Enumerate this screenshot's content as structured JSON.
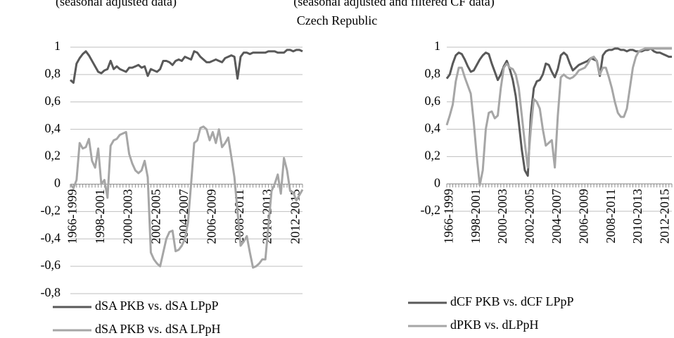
{
  "title": "Czech Republic",
  "chart_data": [
    {
      "type": "line",
      "subtitle": "(seasonal adjusted data)",
      "categories": [
        null,
        "1966-1999",
        null,
        null,
        null,
        null,
        null,
        null,
        null,
        null,
        "1998-2001",
        null,
        null,
        null,
        null,
        null,
        null,
        null,
        null,
        "2000-2003",
        null,
        null,
        null,
        null,
        null,
        null,
        null,
        null,
        "2002-2005",
        null,
        null,
        null,
        null,
        null,
        null,
        null,
        null,
        "2004-2007",
        null,
        null,
        null,
        null,
        null,
        null,
        null,
        null,
        "2006-2009",
        null,
        null,
        null,
        null,
        null,
        null,
        null,
        null,
        "2008-2011",
        null,
        null,
        null,
        null,
        null,
        null,
        null,
        null,
        "2010-2013",
        null,
        null,
        null,
        null,
        null,
        null,
        null,
        null,
        "2012-2015",
        null,
        null
      ],
      "ylim": [
        -0.8,
        1
      ],
      "yticks": [
        {
          "value": -0.8,
          "label": "-0,8"
        },
        {
          "value": -0.6,
          "label": "-0,6"
        },
        {
          "value": -0.4,
          "label": "-0,4"
        },
        {
          "value": -0.2,
          "label": "-0,2"
        },
        0,
        {
          "value": 0.2,
          "label": "0,2"
        },
        {
          "value": 0.4,
          "label": "0,4"
        },
        {
          "value": 0.6,
          "label": "0,6"
        },
        {
          "value": 0.8,
          "label": "0,8"
        },
        1
      ],
      "grid": true,
      "series": [
        {
          "name": "dSA PKB vs. dSA LPpP",
          "color": "#595959",
          "values": [
            0.76,
            0.74,
            0.88,
            0.92,
            0.95,
            0.97,
            0.94,
            0.9,
            0.86,
            0.82,
            0.81,
            0.83,
            0.84,
            0.9,
            0.84,
            0.86,
            0.84,
            0.83,
            0.82,
            0.85,
            0.85,
            0.86,
            0.87,
            0.85,
            0.86,
            0.79,
            0.84,
            0.83,
            0.82,
            0.84,
            0.9,
            0.9,
            0.89,
            0.87,
            0.9,
            0.91,
            0.9,
            0.93,
            0.92,
            0.91,
            0.97,
            0.96,
            0.93,
            0.91,
            0.89,
            0.89,
            0.9,
            0.91,
            0.9,
            0.89,
            0.92,
            0.93,
            0.94,
            0.93,
            0.77,
            0.93,
            0.96,
            0.96,
            0.95,
            0.96,
            0.96,
            0.96,
            0.96,
            0.96,
            0.97,
            0.97,
            0.97,
            0.96,
            0.96,
            0.96,
            0.98,
            0.98,
            0.97,
            0.98,
            0.98,
            0.97
          ]
        },
        {
          "name": "dSA PKB vs. dSA LPpH",
          "color": "#a6a6a6",
          "values": [
            0.0,
            -0.03,
            0.03,
            0.3,
            0.26,
            0.27,
            0.33,
            0.17,
            0.12,
            0.26,
            0.0,
            0.03,
            -0.1,
            0.28,
            0.32,
            0.33,
            0.36,
            0.37,
            0.38,
            0.22,
            0.15,
            0.1,
            0.08,
            0.1,
            0.17,
            0.05,
            -0.5,
            -0.55,
            -0.58,
            -0.6,
            -0.5,
            -0.4,
            -0.35,
            -0.34,
            -0.49,
            -0.48,
            -0.45,
            -0.4,
            -0.28,
            0.0,
            0.3,
            0.32,
            0.41,
            0.42,
            0.4,
            0.32,
            0.38,
            0.3,
            0.4,
            0.27,
            0.3,
            0.34,
            0.2,
            0.05,
            -0.2,
            -0.45,
            -0.42,
            -0.38,
            -0.5,
            -0.61,
            -0.6,
            -0.58,
            -0.55,
            -0.55,
            -0.3,
            -0.05,
            0.0,
            0.07,
            -0.07,
            0.19,
            0.1,
            -0.05,
            -0.06,
            -0.12,
            -0.08,
            -0.04
          ]
        }
      ]
    },
    {
      "type": "line",
      "subtitle": "(seasonal adjusted and filtered CF data)",
      "categories": [
        null,
        "1966-1999",
        null,
        null,
        null,
        null,
        null,
        null,
        null,
        null,
        "1998-2001",
        null,
        null,
        null,
        null,
        null,
        null,
        null,
        null,
        "2000-2003",
        null,
        null,
        null,
        null,
        null,
        null,
        null,
        null,
        "2002-2005",
        null,
        null,
        null,
        null,
        null,
        null,
        null,
        null,
        "2004-2007",
        null,
        null,
        null,
        null,
        null,
        null,
        null,
        null,
        "2006-2009",
        null,
        null,
        null,
        null,
        null,
        null,
        null,
        null,
        "2008-2011",
        null,
        null,
        null,
        null,
        null,
        null,
        null,
        null,
        "2010-2013",
        null,
        null,
        null,
        null,
        null,
        null,
        null,
        null,
        "2012-2015",
        null,
        null
      ],
      "ylim": [
        -0.2,
        1
      ],
      "yticks": [
        {
          "value": -0.2,
          "label": "-0,2"
        },
        0,
        {
          "value": 0.2,
          "label": "0,2"
        },
        {
          "value": 0.4,
          "label": "0,4"
        },
        {
          "value": 0.6,
          "label": "0,6"
        },
        {
          "value": 0.8,
          "label": "0,8"
        },
        1
      ],
      "grid": true,
      "series": [
        {
          "name": "dCF PKB vs. dCF LPpP",
          "color": "#595959",
          "values": [
            0.77,
            0.8,
            0.88,
            0.94,
            0.96,
            0.95,
            0.91,
            0.86,
            0.82,
            0.83,
            0.87,
            0.91,
            0.94,
            0.96,
            0.95,
            0.88,
            0.82,
            0.76,
            0.8,
            0.86,
            0.9,
            0.84,
            0.76,
            0.64,
            0.45,
            0.25,
            0.1,
            0.06,
            0.5,
            0.7,
            0.75,
            0.76,
            0.8,
            0.88,
            0.87,
            0.82,
            0.78,
            0.84,
            0.94,
            0.96,
            0.94,
            0.88,
            0.83,
            0.85,
            0.87,
            0.88,
            0.89,
            0.9,
            0.92,
            0.91,
            0.9,
            0.79,
            0.94,
            0.97,
            0.98,
            0.98,
            0.99,
            0.99,
            0.98,
            0.98,
            0.97,
            0.98,
            0.98,
            0.97,
            0.97,
            0.97,
            0.98,
            0.98,
            0.99,
            0.97,
            0.96,
            0.96,
            0.95,
            0.94,
            0.93,
            0.93
          ]
        },
        {
          "name": "dPKB vs. dLPpH",
          "color": "#a6a6a6",
          "values": [
            0.43,
            0.5,
            0.58,
            0.75,
            0.85,
            0.85,
            0.78,
            0.72,
            0.66,
            0.45,
            0.2,
            -0.01,
            0.1,
            0.4,
            0.52,
            0.53,
            0.48,
            0.5,
            0.7,
            0.85,
            0.88,
            0.85,
            0.84,
            0.8,
            0.7,
            0.5,
            0.3,
            0.12,
            0.4,
            0.62,
            0.6,
            0.55,
            0.4,
            0.28,
            0.3,
            0.32,
            0.12,
            0.5,
            0.78,
            0.8,
            0.78,
            0.77,
            0.78,
            0.8,
            0.83,
            0.84,
            0.85,
            0.88,
            0.92,
            0.93,
            0.9,
            0.8,
            0.85,
            0.85,
            0.78,
            0.7,
            0.6,
            0.52,
            0.49,
            0.49,
            0.55,
            0.7,
            0.85,
            0.93,
            0.97,
            0.98,
            0.99,
            0.99,
            0.99,
            0.99,
            0.99,
            0.99,
            0.99,
            0.99,
            0.99,
            0.99
          ]
        }
      ]
    }
  ]
}
